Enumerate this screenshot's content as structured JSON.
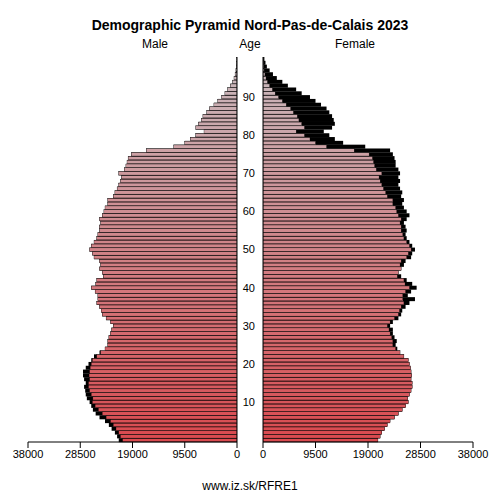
{
  "chart_data": {
    "type": "population_pyramid",
    "title": "Demographic Pyramid Nord-Pas-de-Calais 2023",
    "y_label": "Age",
    "source": "www.iz.sk/RFRE1",
    "orientation": "horizontal",
    "grid": false,
    "categories": [
      null,
      null,
      null,
      null,
      null,
      null,
      null,
      null,
      null,
      null,
      "10",
      null,
      null,
      null,
      null,
      null,
      null,
      null,
      null,
      null,
      "20",
      null,
      null,
      null,
      null,
      null,
      null,
      null,
      null,
      null,
      "30",
      null,
      null,
      null,
      null,
      null,
      null,
      null,
      null,
      null,
      "40",
      null,
      null,
      null,
      null,
      null,
      null,
      null,
      null,
      null,
      "50",
      null,
      null,
      null,
      null,
      null,
      null,
      null,
      null,
      null,
      "60",
      null,
      null,
      null,
      null,
      null,
      null,
      null,
      null,
      null,
      "70",
      null,
      null,
      null,
      null,
      null,
      null,
      null,
      null,
      null,
      "80",
      null,
      null,
      null,
      null,
      null,
      null,
      null,
      null,
      null,
      "90",
      null,
      null,
      null,
      null,
      null,
      null,
      null,
      null,
      null,
      null
    ],
    "xlim": [
      0,
      38000
    ],
    "xticks": [
      0,
      9500,
      19000,
      28500,
      38000
    ],
    "series": [
      {
        "name": "Male",
        "color": "#d94a4f",
        "values": [
          21500,
          21800,
          22200,
          22800,
          23300,
          24000,
          25000,
          25700,
          26200,
          26500,
          26800,
          27300,
          27500,
          27600,
          27800,
          27500,
          27800,
          28000,
          28000,
          27500,
          27000,
          26500,
          26000,
          25000,
          24000,
          23500,
          23500,
          23300,
          23000,
          22800,
          22500,
          23000,
          23800,
          24500,
          24700,
          25000,
          25500,
          25300,
          25300,
          25800,
          26500,
          25700,
          25500,
          24300,
          24500,
          25000,
          24800,
          25000,
          26000,
          26300,
          26800,
          26500,
          26000,
          25500,
          25300,
          25000,
          25000,
          24800,
          25000,
          24500,
          24200,
          24000,
          23500,
          23500,
          22500,
          22200,
          21800,
          21500,
          21200,
          21000,
          21500,
          20500,
          20200,
          20000,
          19800,
          19200,
          16500,
          11500,
          9500,
          8500,
          7500,
          6000,
          7500,
          7000,
          6500,
          6200,
          5500,
          5000,
          4200,
          3500,
          2800,
          2200,
          1700,
          1200,
          800,
          550,
          350,
          200,
          120,
          70,
          40
        ]
      },
      {
        "name": "Female",
        "color": "#d94a4f",
        "values": [
          20800,
          21200,
          21500,
          22000,
          22500,
          23000,
          23800,
          24500,
          25200,
          25800,
          26300,
          26200,
          26500,
          26800,
          27000,
          27000,
          26800,
          26900,
          26800,
          26700,
          26500,
          26300,
          25500,
          24800,
          24300,
          24000,
          24200,
          23800,
          23500,
          23500,
          23000,
          23500,
          24500,
          25000,
          25200,
          25800,
          26500,
          27500,
          26200,
          26800,
          27800,
          27000,
          26000,
          25000,
          24500,
          25000,
          25500,
          25800,
          26800,
          27000,
          27500,
          27000,
          26500,
          26000,
          25800,
          26000,
          25800,
          25500,
          26000,
          26500,
          26000,
          25500,
          25200,
          25500,
          25000,
          25200,
          24800,
          24500,
          24800,
          24500,
          24800,
          24500,
          24000,
          24000,
          23800,
          23500,
          23000,
          18500,
          14500,
          13000,
          12000,
          11000,
          12500,
          13000,
          12800,
          12500,
          12000,
          11500,
          10500,
          9500,
          8500,
          7000,
          6000,
          4500,
          3500,
          2500,
          1800,
          1200,
          700,
          450,
          250
        ]
      }
    ]
  }
}
